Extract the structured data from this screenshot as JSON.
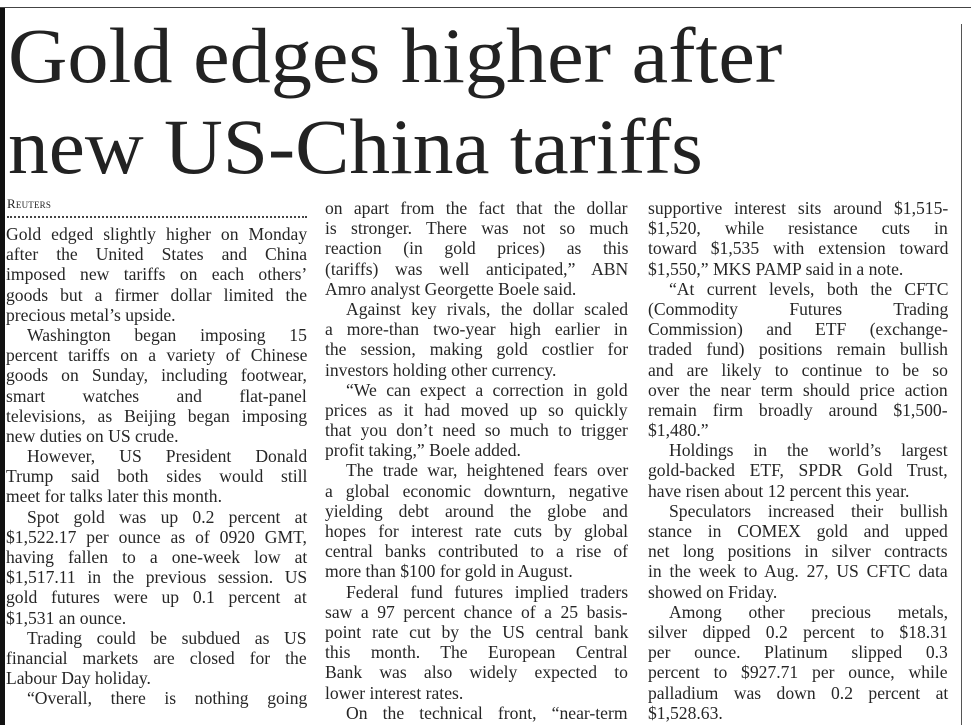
{
  "article": {
    "headline": [
      "Gold edges higher after",
      "new US-China tariffs"
    ],
    "byline": "Reuters",
    "columns": [
      [
        {
          "indent": false,
          "lines": [
            "Gold edged slightly higher on Monday",
            "after the United States and China",
            "imposed new tariffs on each others’",
            "goods but a firmer dollar limited the",
            "precious metal’s upside."
          ]
        },
        {
          "indent": true,
          "lines": [
            "Washington began imposing 15",
            "percent tariffs on a variety of Chinese",
            "goods on Sunday, including footwear,",
            "smart watches and flat-panel",
            "televisions, as Beijing began imposing",
            "new duties on US crude."
          ]
        },
        {
          "indent": true,
          "lines": [
            "However, US President Donald",
            "Trump said both sides would still",
            "meet for talks later this month."
          ]
        },
        {
          "indent": true,
          "lines": [
            "Spot gold was up 0.2 percent at",
            "$1,522.17 per ounce as of 0920 GMT,",
            "having fallen to a one-week low at",
            "$1,517.11 in the previous session. US",
            "gold futures were up 0.1 percent at",
            "$1,531 an ounce."
          ]
        },
        {
          "indent": true,
          "lines": [
            "Trading could be subdued as US",
            "financial markets are closed for the",
            "Labour Day holiday."
          ]
        },
        {
          "indent": true,
          "continues": true,
          "lines": [
            "“Overall, there is nothing going"
          ]
        }
      ],
      [
        {
          "indent": false,
          "lines": [
            "on apart from the fact that the dollar",
            "is stronger. There was not so much",
            "reaction (in gold prices) as this",
            "(tariffs) was well anticipated,” ABN",
            "Amro analyst Georgette Boele said."
          ]
        },
        {
          "indent": true,
          "lines": [
            "Against key rivals, the dollar scaled",
            "a more-than two-year high earlier in",
            "the session, making gold costlier for",
            "investors holding other currency."
          ]
        },
        {
          "indent": true,
          "lines": [
            "“We can expect a correction in gold",
            "prices as it had moved up so quickly",
            "that you don’t need so much to trigger",
            "profit taking,” Boele added."
          ]
        },
        {
          "indent": true,
          "lines": [
            "The trade war, heightened fears over",
            "a global economic downturn, negative",
            "yielding debt around the globe and",
            "hopes for interest rate cuts by global",
            "central banks contributed to a rise of",
            "more than $100 for gold in August."
          ]
        },
        {
          "indent": true,
          "lines": [
            "Federal fund futures implied traders",
            "saw a 97 percent chance of a 25 basis-",
            "point rate cut by the US central bank",
            "this month. The European Central",
            "Bank was also widely expected to",
            "lower interest rates."
          ]
        },
        {
          "indent": true,
          "continues": true,
          "lines": [
            "On the technical front, “near-term"
          ]
        }
      ],
      [
        {
          "indent": false,
          "lines": [
            "supportive interest sits around $1,515-",
            "$1,520, while resistance cuts in",
            "toward $1,535 with extension toward",
            "$1,550,” MKS PAMP said in a note."
          ]
        },
        {
          "indent": true,
          "lines": [
            "“At current levels, both the CFTC",
            "(Commodity Futures Trading",
            "Commission) and ETF (exchange-",
            "traded fund) positions remain bullish",
            "and are likely to continue to be so",
            "over the near term should price action",
            "remain firm broadly around $1,500-",
            "$1,480.”"
          ]
        },
        {
          "indent": true,
          "lines": [
            "Holdings in the world’s largest",
            "gold-backed ETF, SPDR Gold Trust,",
            "have risen about 12 percent this year."
          ]
        },
        {
          "indent": true,
          "lines": [
            "Speculators increased their bullish",
            "stance in COMEX gold and upped",
            "net long positions in silver contracts",
            "in the week to Aug. 27, US CFTC data",
            "showed on Friday."
          ]
        },
        {
          "indent": true,
          "lines": [
            "Among other precious metals,",
            "silver dipped 0.2 percent to $18.31",
            "per ounce. Platinum slipped 0.3",
            "percent to $927.71 per ounce, while",
            "palladium was down 0.2 percent at",
            "$1,528.63."
          ]
        }
      ]
    ]
  }
}
